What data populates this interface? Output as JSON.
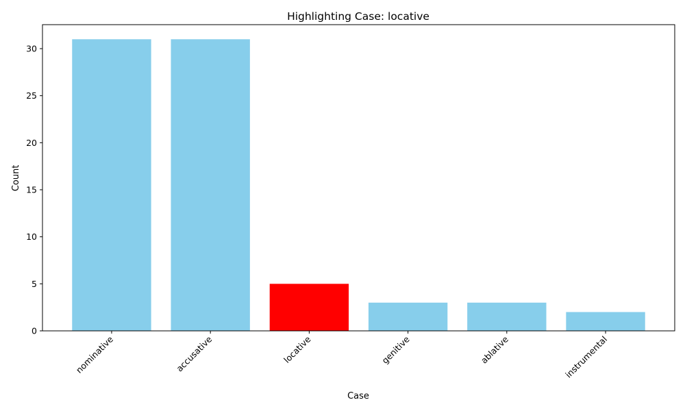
{
  "chart_data": {
    "type": "bar",
    "title": "Highlighting Case: locative",
    "xlabel": "Case",
    "ylabel": "Count",
    "categories": [
      "nominative",
      "accusative",
      "locative",
      "genitive",
      "ablative",
      "instrumental"
    ],
    "values": [
      31,
      31,
      5,
      3,
      3,
      2
    ],
    "highlight": "locative",
    "ylim": [
      0,
      32.55
    ],
    "yticks": [
      0,
      5,
      10,
      15,
      20,
      25,
      30
    ],
    "grid": false,
    "colors": {
      "bar": "#87ceeb",
      "highlight": "#ff0000",
      "axis": "#000000"
    }
  }
}
